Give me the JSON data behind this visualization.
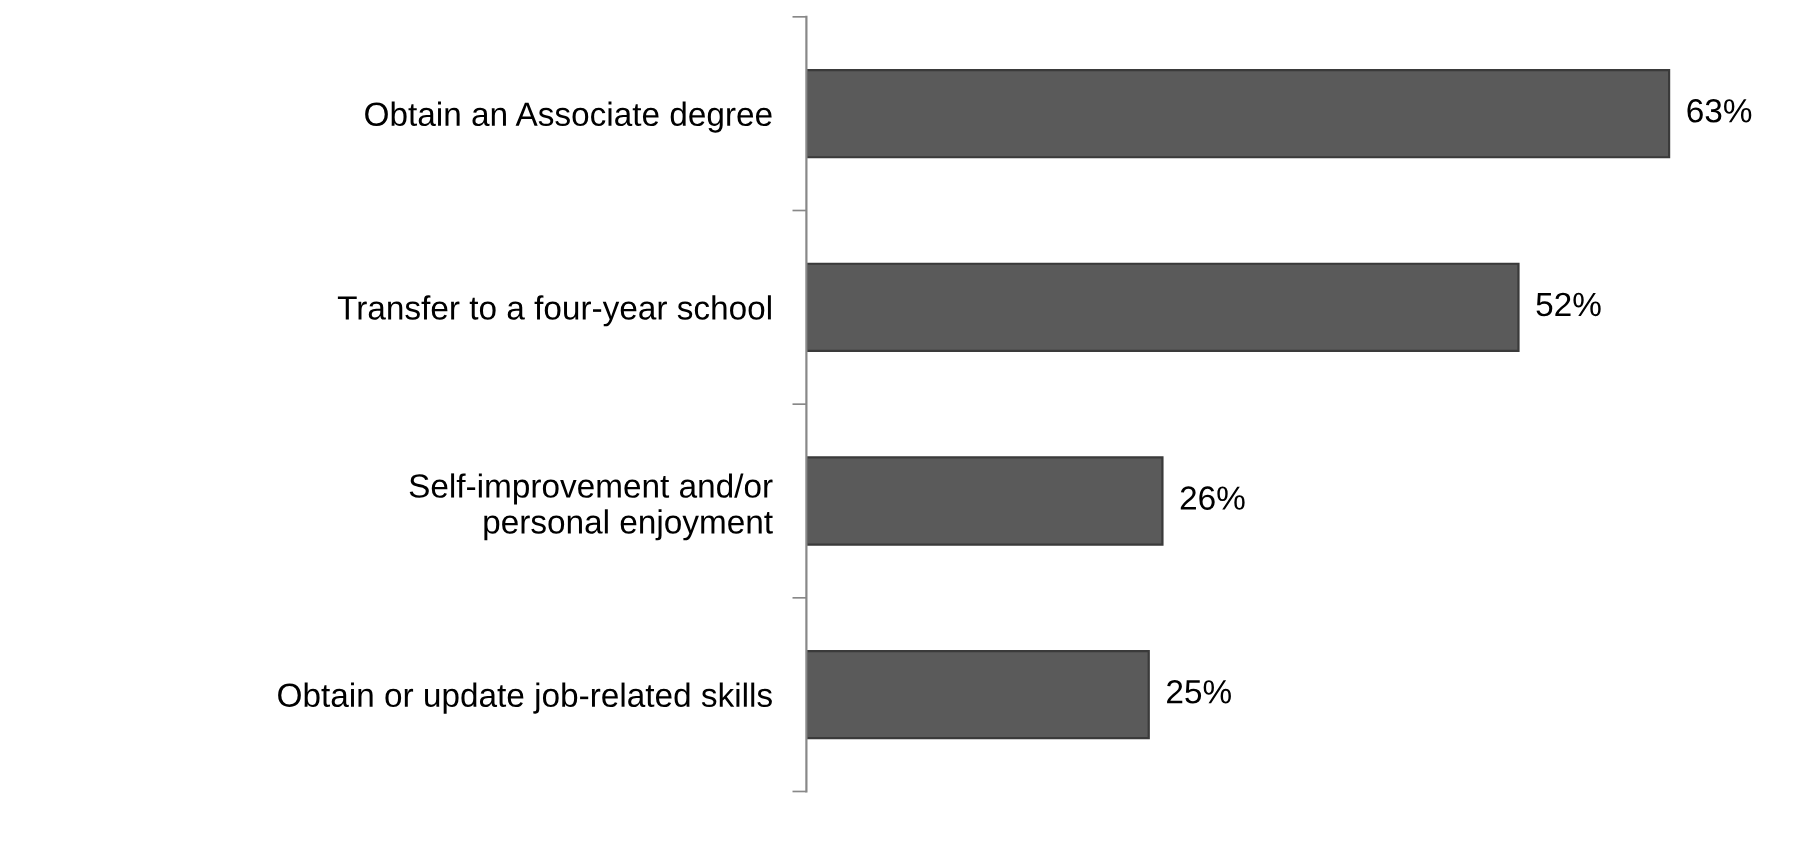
{
  "chart_data": {
    "type": "bar",
    "orientation": "horizontal",
    "categories": [
      "Obtain an Associate degree",
      "Transfer to a four-year school",
      "Self-improvement and/or\npersonal enjoyment",
      "Obtain or update job-related skills"
    ],
    "values": [
      63,
      52,
      26,
      25
    ],
    "value_labels": [
      "63%",
      "52%",
      "26%",
      "25%"
    ],
    "color": "#5a5a5a",
    "grid": false,
    "legend": false,
    "tick_labels": "y"
  }
}
